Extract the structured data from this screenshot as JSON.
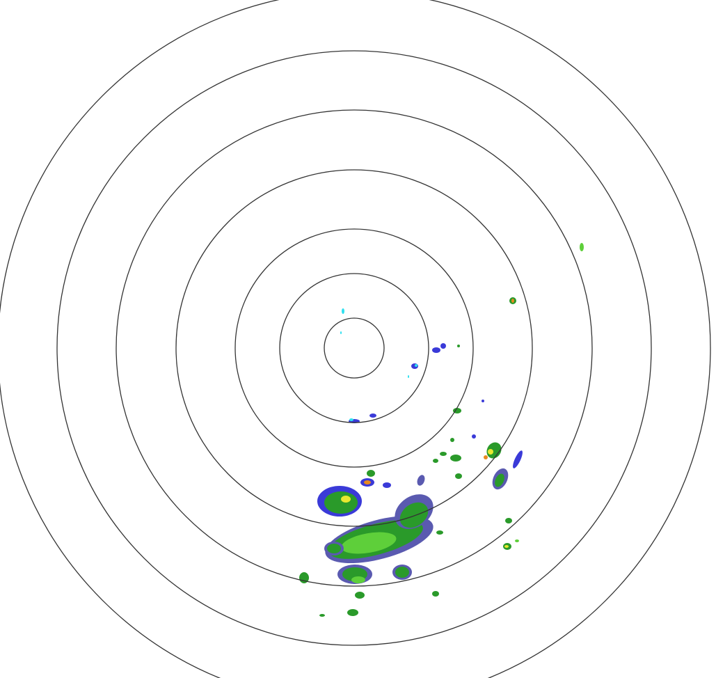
{
  "radar": {
    "range_ring_count": 7,
    "colors": {
      "background": "#ffffff",
      "range_ring": "#333333",
      "light": "#3a3ad8",
      "light_gray": "#5a5ab0",
      "moderate": "#2a9a2a",
      "moderate_light": "#5ecf3a",
      "heavy": "#e8e830",
      "very_heavy": "#e88a20",
      "intense": "#d02020",
      "cyan": "#30e0f0"
    }
  }
}
